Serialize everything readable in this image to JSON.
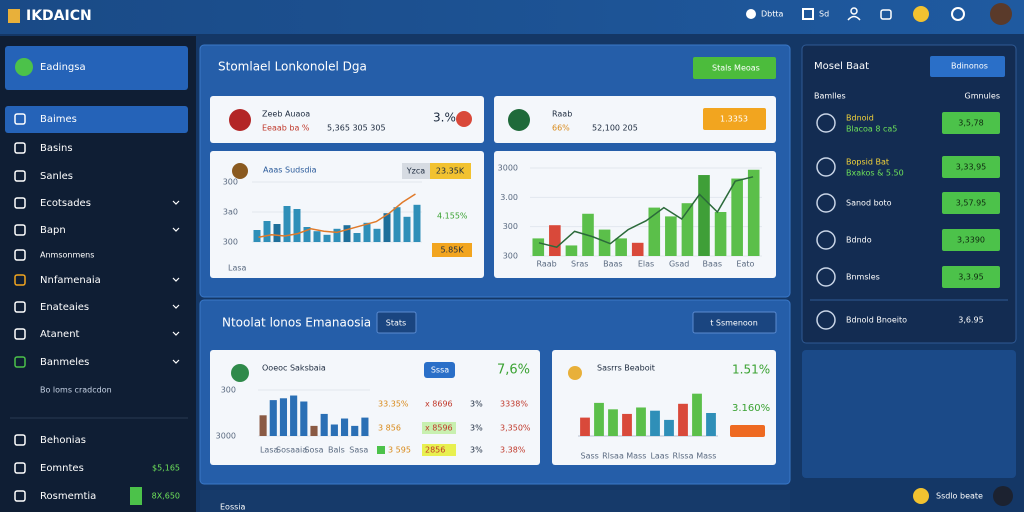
{
  "header": {
    "logo": "IKDAICN",
    "links": [
      "Dbtta",
      "Sd"
    ]
  },
  "sidebar": {
    "top": "Eadingsa",
    "items": [
      "Baimes",
      "Basins",
      "Sanles",
      "Ecotsades",
      "Bapn",
      "Anmsonmens",
      "Nnfamenaia",
      "Enateaies",
      "Atanent",
      "Banmeles"
    ],
    "note": "Bo loms cradcdon",
    "footer": [
      {
        "label": "Behonias"
      },
      {
        "label": "Eomntes",
        "value": "$5,165"
      },
      {
        "label": "Rosmemtia",
        "value": "8X,650"
      }
    ]
  },
  "panel1": {
    "title": "Stomlael Lonkonolel Dga",
    "button": "Stals Meoas",
    "cards": [
      {
        "name": "Zeeb Auaoa",
        "sub": "Eeaab ba %",
        "detail": "5,365 305 305",
        "stat": "3.%"
      },
      {
        "name": "Raab",
        "sub": "66%",
        "detail": "52,100 205",
        "stat": "1.3353"
      }
    ],
    "charts": [
      {
        "type": "bar",
        "title": "Aaas Sudsdia",
        "pill": "Yzca",
        "pill_value": "23.35K",
        "stat1": "4.155%",
        "stat2": "5.85K",
        "ylabels": [
          "300",
          "3a0",
          "300"
        ],
        "xlabels": [
          "Lasa"
        ],
        "ylim": [
          0,
          100
        ],
        "values": [
          20,
          35,
          30,
          60,
          55,
          25,
          18,
          12,
          22,
          28,
          15,
          32,
          22,
          48,
          58,
          42,
          62
        ],
        "colors": [
          "#2f8fb8",
          "#2f8fb8",
          "#1f6f9a",
          "#2f8fb8",
          "#2f8fb8",
          "#2f8fb8",
          "#2f8fb8",
          "#2f8fb8",
          "#2f8fb8",
          "#1f6f9a",
          "#2f8fb8",
          "#2f8fb8",
          "#2f8fb8",
          "#1f6f9a",
          "#2f8fb8",
          "#2f8fb8",
          "#2f8fb8"
        ],
        "line": {
          "color": "#e07a2a",
          "values": [
            8,
            12,
            10,
            14,
            22,
            18,
            16,
            22,
            28,
            34,
            48,
            66,
            80
          ]
        }
      },
      {
        "type": "bar",
        "title": "",
        "ylabels": [
          "3000",
          "3.00",
          "300",
          "300"
        ],
        "xlabels": [
          "Raab",
          "Sras",
          "Baas",
          "Elas",
          "Gsad",
          "Baas",
          "Eato"
        ],
        "ylim": [
          0,
          100
        ],
        "values": [
          20,
          35,
          12,
          48,
          30,
          20,
          15,
          55,
          45,
          60,
          92,
          50,
          88,
          98
        ],
        "colors": [
          "#5bbf4a",
          "#d9493a",
          "#5bbf4a",
          "#5bbf4a",
          "#5bbf4a",
          "#5bbf4a",
          "#d9493a",
          "#5bbf4a",
          "#5bbf4a",
          "#5bbf4a",
          "#3f9f38",
          "#5bbf4a",
          "#5bbf4a",
          "#5bbf4a"
        ],
        "line": {
          "color": "#2b6a3a",
          "values": [
            15,
            10,
            28,
            22,
            14,
            30,
            40,
            55,
            42,
            70,
            50,
            85,
            90
          ]
        }
      }
    ]
  },
  "panel2": {
    "title": "Ntoolat lonos Emanaosia",
    "button": "Stats",
    "button2": "t Ssmenoon",
    "charts": [
      {
        "type": "bar",
        "title": "Ooeoc Saksbaia",
        "pill": "Sssa",
        "stat1": "7,6%",
        "ylabels": [
          "300",
          "3000"
        ],
        "xlabels": [
          "Lasa",
          "Sosaaia",
          "Sosa",
          "Bals",
          "Sasa"
        ],
        "ylim": [
          0,
          100
        ],
        "values": [
          45,
          78,
          82,
          88,
          75,
          22,
          48,
          25,
          38,
          22,
          40
        ],
        "colors": [
          "#8a5a44",
          "#2a6fb5",
          "#2a6fb5",
          "#2a6fb5",
          "#2a6fb5",
          "#8a5a44",
          "#2a6fb5",
          "#2a6fb5",
          "#2a6fb5",
          "#2a6fb5",
          "#2a6fb5"
        ],
        "rows": [
          [
            "33.35%",
            "x 8696",
            "3%",
            "3338%"
          ],
          [
            "3 856",
            "x 8596",
            "3%",
            "3,350%"
          ],
          [
            "3 595",
            "2856",
            "3%",
            "3.38%"
          ]
        ]
      },
      {
        "type": "bar",
        "title": "Sasrrs Beaboit",
        "stat1": "1.51%",
        "stat2": "3.160%",
        "xlabels": [
          "Sass",
          "Rlsaa",
          "Mass",
          "Laas",
          "Rlssa",
          "Mass"
        ],
        "ylim": [
          0,
          100
        ],
        "values": [
          40,
          72,
          58,
          48,
          62,
          55,
          35,
          70,
          92,
          50
        ],
        "colors": [
          "#d9493a",
          "#5bbf4a",
          "#5bbf4a",
          "#d9493a",
          "#5bbf4a",
          "#2f8fb8",
          "#2f8fb8",
          "#d9493a",
          "#5bbf4a",
          "#2f8fb8"
        ]
      }
    ]
  },
  "right": {
    "title": "Mosel Baat",
    "button": "Bdinonos",
    "headers": [
      "Bamlles",
      "Gmnules"
    ],
    "rows": [
      {
        "label": "Bdnoid",
        "sub": "Blacoa 8 ca5",
        "value": "3,5,78"
      },
      {
        "label": "Bopsid Bat",
        "sub": "Bxakos & 5.50",
        "value": "3,33,95"
      },
      {
        "label": "Sanod boto",
        "value": "3,57.95"
      },
      {
        "label": "Bdndo",
        "value": "3,3390"
      },
      {
        "label": "Bnmsles",
        "value": "3,3.95"
      },
      {
        "label": "Bdnold Bnoeito",
        "value": "3,6.95"
      }
    ]
  },
  "bottom": {
    "label": "Eossia",
    "status": "Ssdlo beate"
  }
}
